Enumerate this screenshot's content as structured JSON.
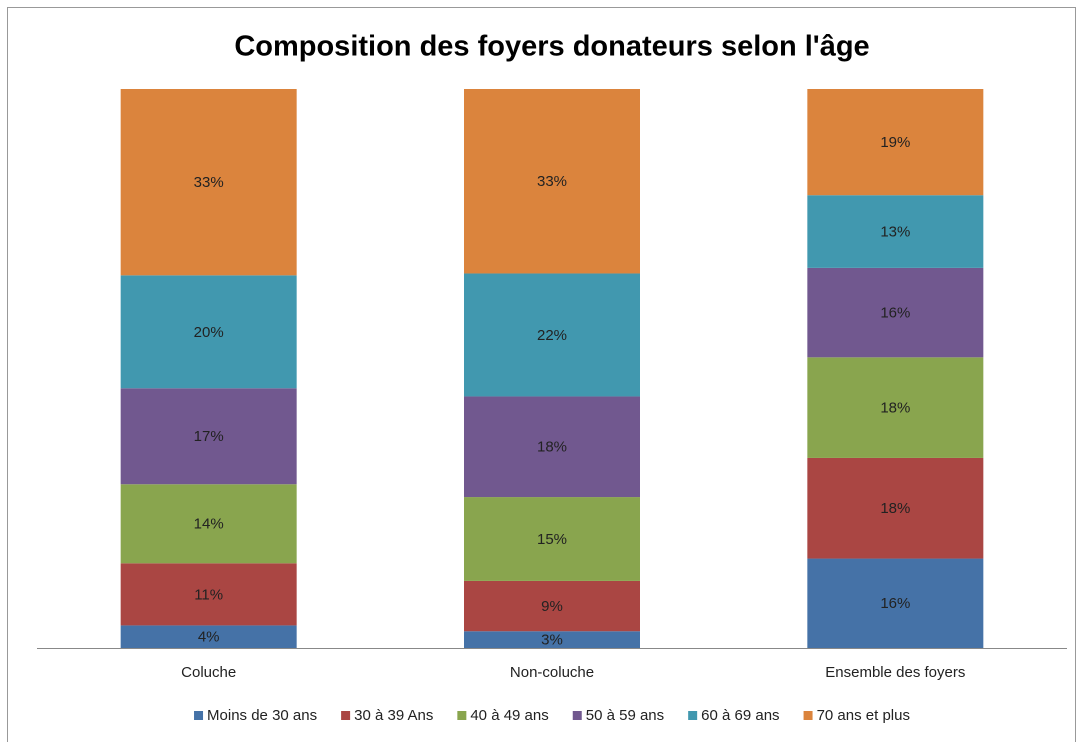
{
  "chart_data": {
    "type": "stacked_bar",
    "stacking": "percent",
    "title": "Composition des foyers donateurs selon l'âge",
    "categories": [
      "Coluche",
      "Non-coluche",
      "Ensemble des foyers"
    ],
    "series": [
      {
        "name": "Moins de 30 ans",
        "color": "#4572a7",
        "values": [
          4,
          3,
          16
        ],
        "value_labels": [
          "4%",
          "3%",
          "16%"
        ]
      },
      {
        "name": "30 à 39 Ans",
        "color": "#aa4643",
        "values": [
          11,
          9,
          18
        ],
        "value_labels": [
          "11%",
          "9%",
          "18%"
        ]
      },
      {
        "name": "40 à 49 ans",
        "color": "#89a54e",
        "values": [
          14,
          15,
          18
        ],
        "value_labels": [
          "14%",
          "15%",
          "18%"
        ]
      },
      {
        "name": "50 à 59 ans",
        "color": "#71588f",
        "values": [
          17,
          18,
          16
        ],
        "value_labels": [
          "17%",
          "18%",
          "16%"
        ]
      },
      {
        "name": "60 à 69 ans",
        "color": "#4198af",
        "values": [
          20,
          22,
          13
        ],
        "value_labels": [
          "20%",
          "22%",
          "13%"
        ]
      },
      {
        "name": "70 ans et plus",
        "color": "#db843d",
        "values": [
          33,
          33,
          19
        ],
        "value_labels": [
          "33%",
          "33%",
          "19%"
        ]
      }
    ],
    "legend": "bottom"
  }
}
